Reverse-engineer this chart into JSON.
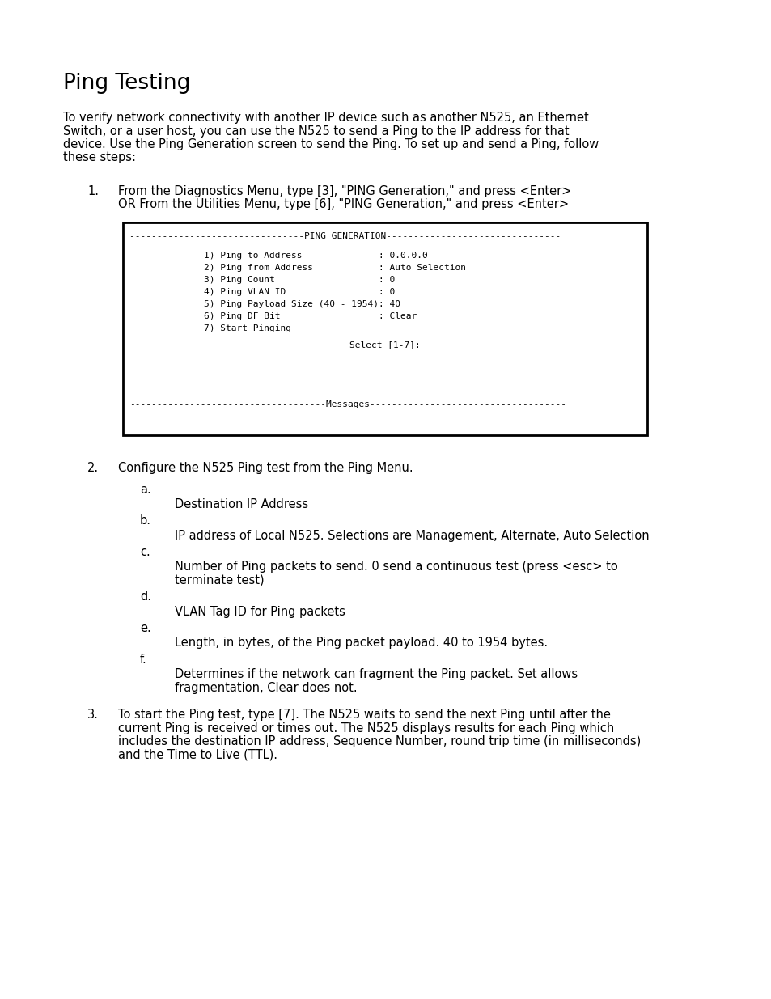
{
  "bg_color": "#ffffff",
  "title": "Ping Testing",
  "title_fontsize": 19,
  "title_bold": false,
  "body_fontsize": 10.5,
  "mono_fontsize": 8.0,
  "intro_text": "To verify network connectivity with another IP device such as another N525, an Ethernet\nSwitch, or a user host, you can use the N525 to send a Ping to the IP address for that\ndevice. Use the Ping Generation screen to send the Ping. To set up and send a Ping, follow\nthese steps:",
  "step1_label": "1.",
  "step1_text": "From the Diagnostics Menu, type [3], \"PING Generation,\" and press <Enter>\nOR From the Utilities Menu, type [6], \"PING Generation,\" and press <Enter>",
  "terminal_line1": "--------------------------------PING GENERATION--------------------------------",
  "terminal_menu": [
    "1) Ping to Address              : 0.0.0.0",
    "2) Ping from Address            : Auto Selection",
    "3) Ping Count                   : 0",
    "4) Ping VLAN ID                 : 0",
    "5) Ping Payload Size (40 - 1954): 40",
    "6) Ping DF Bit                  : Clear",
    "7) Start Pinging"
  ],
  "terminal_select": "Select [1-7]:",
  "terminal_messages": "------------------------------------Messages------------------------------------",
  "step2_label": "2.",
  "step2_text": "Configure the N525 Ping test from the Ping Menu.",
  "sub_items": [
    {
      "label": "a.",
      "text": "Destination IP Address",
      "multiline": false
    },
    {
      "label": "b.",
      "text": "IP address of Local N525. Selections are Management, Alternate, Auto Selection",
      "multiline": false
    },
    {
      "label": "c.",
      "text": "Number of Ping packets to send. 0 send a continuous test (press <esc> to\nterminate test)",
      "multiline": true
    },
    {
      "label": "d.",
      "text": "VLAN Tag ID for Ping packets",
      "multiline": false
    },
    {
      "label": "e.",
      "text": "Length, in bytes, of the Ping packet payload. 40 to 1954 bytes.",
      "multiline": false
    },
    {
      "label": "f.",
      "text": "Determines if the network can fragment the Ping packet. Set allows\nfragmentation, Clear does not.",
      "multiline": true
    }
  ],
  "step3_label": "3.",
  "step3_text": "To start the Ping test, type [7]. The N525 waits to send the next Ping until after the\ncurrent Ping is received or times out. The N525 displays results for each Ping which\nincludes the destination IP address, Sequence Number, round trip time (in milliseconds)\nand the Time to Live (TTL)."
}
